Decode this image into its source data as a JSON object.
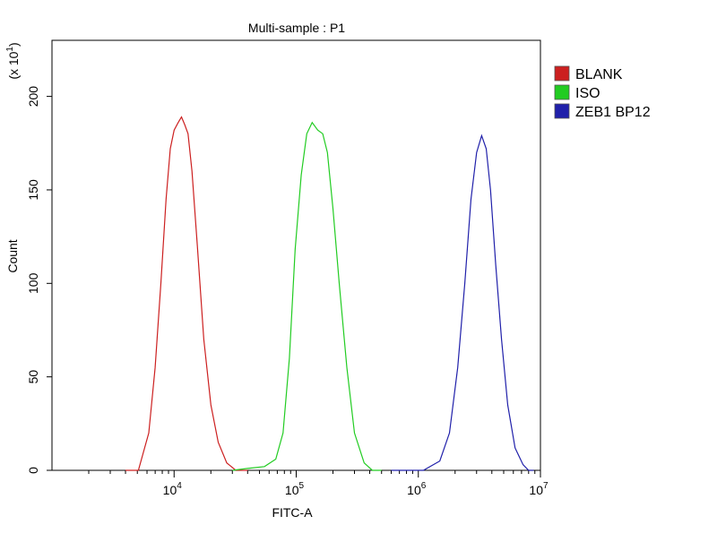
{
  "chart_data": {
    "type": "line",
    "title": "Multi-sample : P1",
    "xlabel": "FITC-A",
    "ylabel": "Count",
    "y_multiplier_label": "(x 10",
    "y_multiplier_exp": "1",
    "x_scale": "log",
    "xlim": [
      1000,
      10000000
    ],
    "ylim": [
      0,
      230
    ],
    "y_ticks": [
      0,
      50,
      100,
      150,
      200
    ],
    "x_ticks": [
      {
        "value": 10000,
        "base": "10",
        "exp": "4"
      },
      {
        "value": 100000,
        "base": "10",
        "exp": "5"
      },
      {
        "value": 1000000,
        "base": "10",
        "exp": "6"
      },
      {
        "value": 10000000,
        "base": "10",
        "exp": "7"
      }
    ],
    "grid": false,
    "legend_position": "right",
    "series": [
      {
        "name": "BLANK",
        "color": "#cc2020",
        "x": [
          4000,
          5100,
          6200,
          7000,
          7800,
          8600,
          9300,
          10000,
          10800,
          11500,
          12200,
          13000,
          14000,
          15500,
          17500,
          20000,
          23000,
          27000,
          32000,
          40000
        ],
        "y": [
          0,
          0,
          20,
          55,
          100,
          145,
          172,
          182,
          186,
          189,
          185,
          180,
          160,
          120,
          70,
          35,
          15,
          4,
          0,
          0
        ]
      },
      {
        "name": "ISO",
        "color": "#22cc22",
        "x": [
          30000,
          40000,
          55000,
          68000,
          78000,
          88000,
          98000,
          110000,
          122000,
          135000,
          150000,
          165000,
          180000,
          200000,
          225000,
          260000,
          300000,
          360000,
          420000,
          500000
        ],
        "y": [
          0,
          1,
          2,
          6,
          20,
          60,
          118,
          158,
          180,
          186,
          182,
          180,
          170,
          140,
          100,
          55,
          20,
          4,
          0,
          0
        ]
      },
      {
        "name": "ZEB1 BP12",
        "color": "#2020aa",
        "x": [
          600000,
          1100000,
          1500000,
          1800000,
          2100000,
          2400000,
          2700000,
          3000000,
          3300000,
          3600000,
          3900000,
          4300000,
          4800000,
          5400000,
          6200000,
          7200000,
          8000000,
          8800000
        ],
        "y": [
          0,
          0,
          5,
          20,
          55,
          100,
          145,
          170,
          179,
          172,
          150,
          110,
          70,
          35,
          12,
          3,
          0,
          0
        ]
      }
    ]
  }
}
